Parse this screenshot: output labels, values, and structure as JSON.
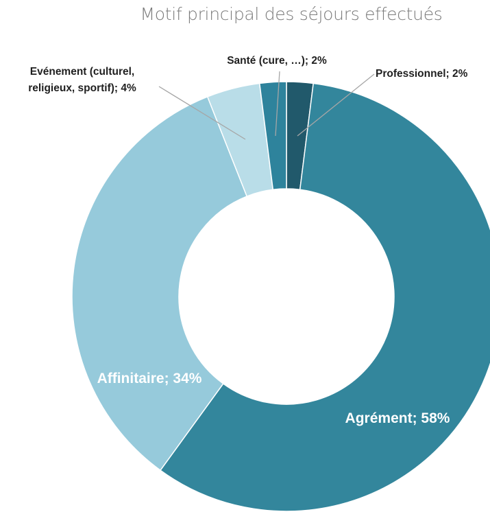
{
  "chart_data": {
    "type": "pie",
    "title": "Motif principal des séjours effectués",
    "slices": [
      {
        "label": "Professionnel",
        "value": 2,
        "display": "Professionnel; 2%",
        "color": "#21596b",
        "label_lines": [
          "Professionnel; 2%"
        ]
      },
      {
        "label": "Agrément",
        "value": 58,
        "display": "Agrément; 58%",
        "color": "#33869c",
        "label_lines": [
          "Agrément; 58%"
        ]
      },
      {
        "label": "Affinitaire",
        "value": 34,
        "display": "Affinitaire; 34%",
        "color": "#96cadb",
        "label_lines": [
          "Affinitaire; 34%"
        ]
      },
      {
        "label": "Evénement (culturel, religieux, sportif)",
        "value": 4,
        "display": "Evénement (culturel, religieux, sportif); 4%",
        "color": "#b9dde8",
        "label_lines": [
          "Evénement (culturel,",
          "religieux, sportif); 4%"
        ]
      },
      {
        "label": "Santé (cure, …)",
        "value": 2,
        "display": "Santé (cure, …); 2%",
        "color": "#2e839c",
        "label_lines": [
          "Santé (cure, …); 2%"
        ]
      }
    ],
    "hole": "donut"
  }
}
